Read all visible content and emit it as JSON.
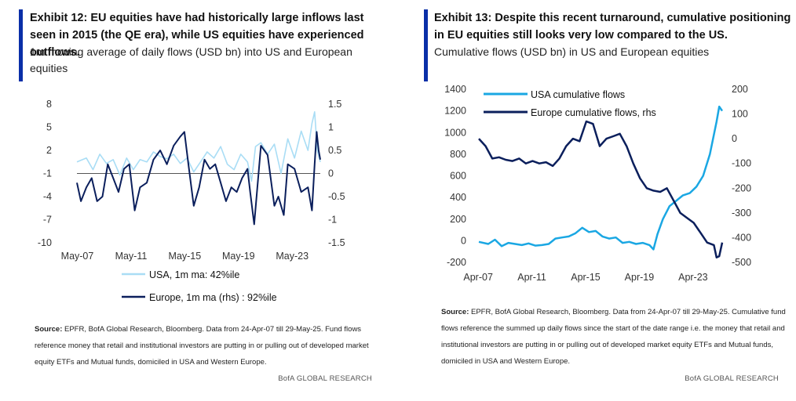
{
  "exhibits": [
    {
      "title": "Exhibit 12: EU equities have had historically large inflows last seen in 2015 (the QE era), while US equities have experienced outflows.",
      "subtitle": "1m moving average of daily flows (USD bn) into US and European equities",
      "source_label": "Source:",
      "source_text": " EPFR, BofA Global Research, Bloomberg. Data from 24-Apr-07 till 29-May-25. Fund flows reference money that retail and institutional investors are putting in or pulling out of developed market equity ETFs and Mutual funds, domiciled in USA and Western Europe.",
      "brand": "BofA GLOBAL RESEARCH"
    },
    {
      "title": "Exhibit 13: Despite this recent turnaround, cumulative positioning in EU equities still looks very low compared to the US.",
      "subtitle": "Cumulative flows (USD bn) in US and European equities",
      "source_label": "Source:",
      "source_text": " EPFR, BofA Global Research, Bloomberg. Data from 24-Apr-07 till 29-May-25. Cumulative fund flows reference the summed up daily flows since the start of the date range i.e. the money that retail and institutional investors are putting in or pulling out of developed market equity ETFs and Mutual funds, domiciled in USA and Western Europe.",
      "brand": "BofA GLOBAL RESEARCH"
    }
  ],
  "chart_data": [
    {
      "type": "line",
      "x_tick_labels": [
        "May-07",
        "May-11",
        "May-15",
        "May-19",
        "May-23"
      ],
      "x_tick_years": [
        2007.33,
        2011.33,
        2015.33,
        2019.33,
        2023.33
      ],
      "x_range": [
        2007.3,
        2025.42
      ],
      "y_left_ticks": [
        "8",
        "5",
        "2",
        "-1",
        "-4",
        "-7",
        "-10"
      ],
      "ylim_left": [
        -10,
        8
      ],
      "y_right_ticks": [
        "1.5",
        "1",
        "0.5",
        "0",
        "-0.5",
        "-1",
        "-1.5"
      ],
      "ylim_right": [
        -1.5,
        1.5
      ],
      "legend_position": "bottom",
      "colors": {
        "usa": "#a9ddf5",
        "europe": "#0b1f5c"
      },
      "series": [
        {
          "name": "USA, 1m ma: 42%ile",
          "axis": "left",
          "x": [
            2007.3,
            2008.0,
            2008.5,
            2009.0,
            2009.5,
            2010.0,
            2010.5,
            2011.0,
            2011.5,
            2012.0,
            2012.5,
            2013.0,
            2013.5,
            2014.0,
            2014.5,
            2015.0,
            2015.5,
            2016.0,
            2016.5,
            2017.0,
            2017.5,
            2018.0,
            2018.5,
            2019.0,
            2019.5,
            2020.0,
            2020.3,
            2020.6,
            2021.0,
            2021.5,
            2022.0,
            2022.5,
            2023.0,
            2023.5,
            2024.0,
            2024.5,
            2024.8,
            2025.0,
            2025.2,
            2025.42
          ],
          "y": [
            0.5,
            1.0,
            -0.5,
            1.5,
            0.3,
            0.8,
            -1.2,
            1.0,
            -0.5,
            0.8,
            0.5,
            1.8,
            1.2,
            0.9,
            1.5,
            0.3,
            1.0,
            -0.8,
            0.5,
            1.8,
            1.0,
            2.5,
            0.2,
            -0.5,
            1.5,
            0.5,
            -2.0,
            2.5,
            3.0,
            1.5,
            2.8,
            -1.0,
            3.5,
            1.0,
            4.5,
            2.0,
            5.5,
            7.0,
            2.0,
            0.5
          ]
        },
        {
          "name": "Europe, 1m ma (rhs) : 92%ile",
          "axis": "right",
          "x": [
            2007.3,
            2007.6,
            2008.0,
            2008.4,
            2008.8,
            2009.2,
            2009.6,
            2010.0,
            2010.4,
            2010.8,
            2011.2,
            2011.6,
            2012.0,
            2012.5,
            2013.0,
            2013.5,
            2014.0,
            2014.5,
            2015.0,
            2015.3,
            2015.6,
            2016.0,
            2016.4,
            2016.8,
            2017.2,
            2017.6,
            2018.0,
            2018.4,
            2018.8,
            2019.2,
            2019.6,
            2020.0,
            2020.2,
            2020.5,
            2021.0,
            2021.5,
            2022.0,
            2022.3,
            2022.7,
            2023.0,
            2023.5,
            2024.0,
            2024.5,
            2024.8,
            2025.0,
            2025.15,
            2025.3,
            2025.42
          ],
          "y": [
            -0.2,
            -0.6,
            -0.3,
            -0.1,
            -0.6,
            -0.5,
            0.2,
            -0.1,
            -0.4,
            0.1,
            0.2,
            -0.8,
            -0.3,
            -0.2,
            0.3,
            0.5,
            0.2,
            0.6,
            0.8,
            0.9,
            0.2,
            -0.7,
            -0.3,
            0.3,
            0.1,
            0.2,
            -0.2,
            -0.6,
            -0.3,
            -0.4,
            -0.1,
            0.1,
            -0.4,
            -1.1,
            0.6,
            0.4,
            -0.7,
            -0.5,
            -0.9,
            0.2,
            0.1,
            -0.4,
            -0.3,
            -0.8,
            0.2,
            0.9,
            0.5,
            0.3
          ]
        }
      ]
    },
    {
      "type": "line",
      "x_tick_labels": [
        "Apr-07",
        "Apr-11",
        "Apr-15",
        "Apr-19",
        "Apr-23"
      ],
      "x_tick_years": [
        2007.25,
        2011.25,
        2015.25,
        2019.25,
        2023.25
      ],
      "x_range": [
        2007.3,
        2025.42
      ],
      "y_left_ticks": [
        "1400",
        "1200",
        "1000",
        "800",
        "600",
        "400",
        "200",
        "0",
        "-200"
      ],
      "ylim_left": [
        -200,
        1400
      ],
      "y_right_ticks": [
        "200",
        "100",
        "0",
        "-100",
        "-200",
        "-300",
        "-400",
        "-500"
      ],
      "ylim_right": [
        -500,
        200
      ],
      "legend_position": "top-left",
      "colors": {
        "usa": "#1aa7e3",
        "europe": "#0b1f5c"
      },
      "series": [
        {
          "name": "USA cumulative flows",
          "axis": "left",
          "x": [
            2007.3,
            2008.0,
            2008.5,
            2009.0,
            2009.5,
            2010.0,
            2010.5,
            2011.0,
            2011.5,
            2012.0,
            2012.5,
            2013.0,
            2013.5,
            2014.0,
            2014.5,
            2015.0,
            2015.5,
            2016.0,
            2016.5,
            2017.0,
            2017.5,
            2018.0,
            2018.5,
            2019.0,
            2019.5,
            2020.0,
            2020.3,
            2020.6,
            2021.0,
            2021.5,
            2022.0,
            2022.5,
            2023.0,
            2023.5,
            2024.0,
            2024.5,
            2025.0,
            2025.2,
            2025.42
          ],
          "y": [
            -10,
            -30,
            10,
            -50,
            -20,
            -30,
            -40,
            -25,
            -45,
            -40,
            -30,
            20,
            30,
            40,
            70,
            120,
            80,
            90,
            40,
            20,
            30,
            -20,
            -10,
            -30,
            -20,
            -40,
            -80,
            60,
            200,
            320,
            370,
            420,
            440,
            500,
            600,
            800,
            1100,
            1240,
            1200
          ]
        },
        {
          "name": "Europe cumulative flows, rhs",
          "axis": "right",
          "x": [
            2007.3,
            2007.8,
            2008.3,
            2008.8,
            2009.3,
            2009.8,
            2010.3,
            2010.8,
            2011.3,
            2011.8,
            2012.3,
            2012.8,
            2013.3,
            2013.8,
            2014.3,
            2014.8,
            2015.3,
            2015.8,
            2016.3,
            2016.8,
            2017.3,
            2017.8,
            2018.3,
            2018.8,
            2019.3,
            2019.8,
            2020.3,
            2020.8,
            2021.3,
            2021.8,
            2022.3,
            2022.8,
            2023.3,
            2023.8,
            2024.3,
            2024.8,
            2025.0,
            2025.2,
            2025.42
          ],
          "y": [
            0,
            -30,
            -80,
            -75,
            -85,
            -90,
            -80,
            -100,
            -90,
            -100,
            -95,
            -110,
            -80,
            -30,
            0,
            -10,
            70,
            60,
            -30,
            0,
            10,
            20,
            -30,
            -100,
            -160,
            -200,
            -210,
            -215,
            -200,
            -250,
            -300,
            -320,
            -340,
            -380,
            -420,
            -430,
            -480,
            -475,
            -420
          ]
        }
      ]
    }
  ]
}
